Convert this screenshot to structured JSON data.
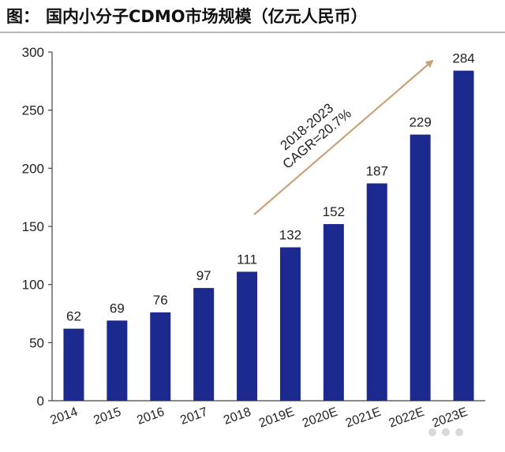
{
  "figure": {
    "label": "图：",
    "title": "国内小分子CDMO市场规模（亿元人民币）"
  },
  "chart_data": {
    "type": "bar",
    "categories": [
      "2014",
      "2015",
      "2016",
      "2017",
      "2018",
      "2019E",
      "2020E",
      "2021E",
      "2022E",
      "2023E"
    ],
    "values": [
      62,
      69,
      76,
      97,
      111,
      132,
      152,
      187,
      229,
      284
    ],
    "ylim": [
      0,
      300
    ],
    "yticks": [
      0,
      50,
      100,
      150,
      200,
      250,
      300
    ],
    "bar_color": "#1c2a8f",
    "annotation": {
      "line1": "2018-2023",
      "line2": "CAGR=20.7%",
      "arrow_color": "#c8a27a"
    }
  }
}
